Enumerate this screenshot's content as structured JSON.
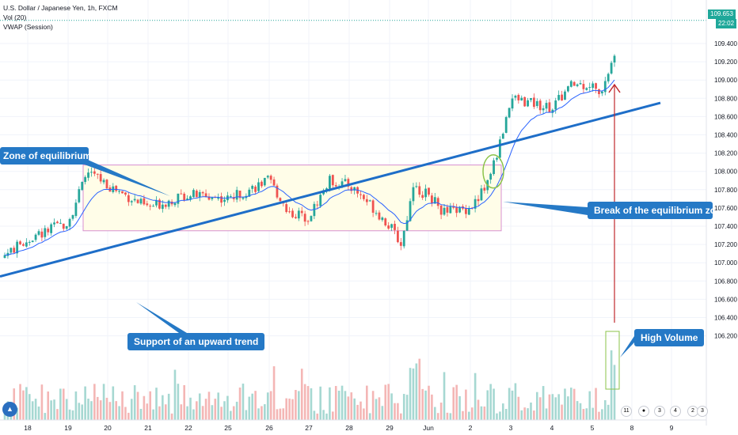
{
  "header": {
    "title": "U.S. Dollar / Japanese Yen, 1h, FXCM",
    "vol_label": "Vol (20)",
    "vwap_label": "VWAP (Session)"
  },
  "price_axis": {
    "current_price": "109.653",
    "countdown": "22:02",
    "ticks": [
      "109.400",
      "109.200",
      "109.000",
      "108.800",
      "108.600",
      "108.400",
      "108.200",
      "108.000",
      "107.800",
      "107.600",
      "107.400",
      "107.200",
      "107.000",
      "106.800",
      "106.600",
      "106.400",
      "106.200"
    ]
  },
  "time_axis": {
    "labels": [
      "18",
      "19",
      "20",
      "21",
      "22",
      "25",
      "26",
      "27",
      "28",
      "29",
      "Jun",
      "2",
      "3",
      "4",
      "5",
      "8",
      "9"
    ]
  },
  "annotations": {
    "zone_label": "Zone of equilibrium",
    "break_label": "Break of the equilibrium zone",
    "support_label": "Support of an upward trend",
    "volume_label": "High Volume"
  },
  "events": {
    "e1": "11",
    "e2": "3",
    "e3": "4",
    "e4": "2",
    "e5": "3"
  },
  "colors": {
    "up": "#26a69a",
    "down": "#ef5350",
    "vwap": "#2962ff",
    "trend": "#1e6ec8",
    "callout": "#2579c6",
    "zone_fill": "#fffde8",
    "zone_border": "#d88fd0",
    "arrow": "#c0282d",
    "price_badge": "#1fa89a"
  },
  "chart_data": {
    "type": "candlestick",
    "symbol": "USDJPY",
    "timeframe": "1h",
    "ylim": [
      106.2,
      109.7
    ],
    "last_price": 109.653,
    "equilibrium_zone": {
      "low": 107.35,
      "high": 108.07
    },
    "trendline": {
      "start": 106.85,
      "end": 108.75
    },
    "close_path": [
      [
        18,
        107.25
      ],
      [
        19,
        107.45
      ],
      [
        19.5,
        108.0
      ],
      [
        20,
        107.85
      ],
      [
        21,
        107.6
      ],
      [
        22,
        107.75
      ],
      [
        25,
        107.7
      ],
      [
        26,
        107.9
      ],
      [
        26.5,
        107.55
      ],
      [
        27,
        107.5
      ],
      [
        27.5,
        107.9
      ],
      [
        28,
        107.85
      ],
      [
        28.5,
        107.65
      ],
      [
        29,
        107.4
      ],
      [
        29.3,
        107.2
      ],
      [
        29.6,
        107.8
      ],
      [
        30,
        107.75
      ],
      [
        31,
        107.55
      ],
      [
        32,
        107.6
      ],
      [
        32.4,
        107.85
      ],
      [
        32.7,
        108.25
      ],
      [
        33,
        108.8
      ],
      [
        34,
        108.7
      ],
      [
        34.5,
        108.95
      ],
      [
        35,
        108.95
      ],
      [
        35.4,
        108.8
      ],
      [
        35.7,
        109.0
      ],
      [
        36.3,
        109.25
      ],
      [
        36.7,
        109.3
      ],
      [
        36.9,
        109.65
      ]
    ],
    "volume_range": [
      0,
      100
    ]
  }
}
